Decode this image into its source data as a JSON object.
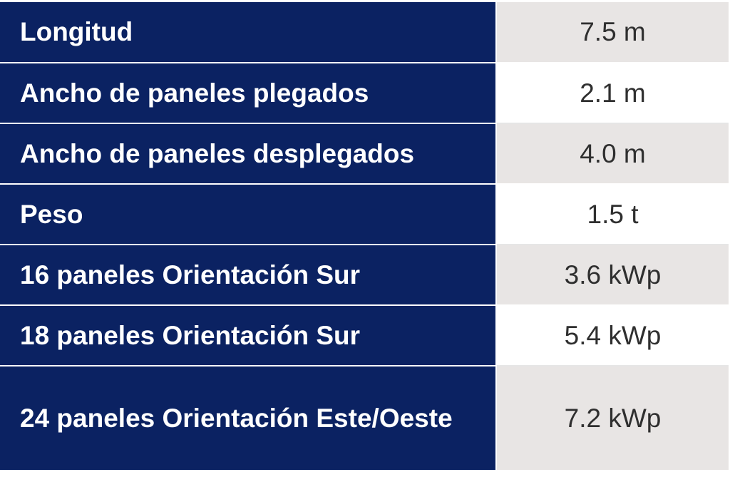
{
  "specs": {
    "rows": [
      {
        "label": "Longitud",
        "value": "7.5 m"
      },
      {
        "label": "Ancho de paneles plegados",
        "value": "2.1 m"
      },
      {
        "label": "Ancho de paneles desplegados",
        "value": "4.0 m"
      },
      {
        "label": "Peso",
        "value": "1.5 t"
      },
      {
        "label": "16 paneles Orientación Sur",
        "value": "3.6 kWp"
      },
      {
        "label": "18 paneles Orientación Sur",
        "value": "5.4 kWp"
      },
      {
        "label": "24 paneles Orientación Este/Oeste",
        "value": "7.2 kWp"
      }
    ]
  },
  "colors": {
    "label_background": "#0b2262",
    "label_text": "#ffffff",
    "value_background_shaded": "#e8e5e4",
    "value_background_plain": "#ffffff",
    "value_text": "#2f2f2f"
  }
}
